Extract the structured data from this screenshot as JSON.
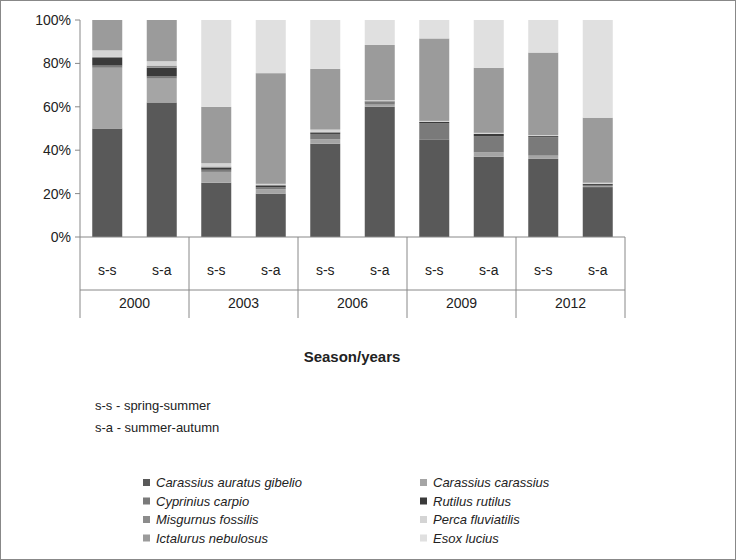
{
  "chart_data": {
    "type": "bar",
    "stacked": true,
    "x_label": "Season/years",
    "notes": [
      "s-s - spring-summer",
      "s-a - summer-autumn"
    ],
    "categories": [
      "s-s",
      "s-a",
      "s-s",
      "s-a",
      "s-s",
      "s-a",
      "s-s",
      "s-a",
      "s-s",
      "s-a"
    ],
    "category_groups": [
      {
        "label": "2000",
        "size": 2
      },
      {
        "label": "2003",
        "size": 2
      },
      {
        "label": "2006",
        "size": 2
      },
      {
        "label": "2009",
        "size": 2
      },
      {
        "label": "2012",
        "size": 2
      }
    ],
    "ylim": [
      0,
      100
    ],
    "yticks": [
      {
        "value": 0,
        "label": "0%"
      },
      {
        "value": 20,
        "label": "20%"
      },
      {
        "value": 40,
        "label": "40%"
      },
      {
        "value": 60,
        "label": "60%"
      },
      {
        "value": 80,
        "label": "80%"
      },
      {
        "value": 100,
        "label": "100%"
      }
    ],
    "grid": false,
    "legend": "bottom",
    "series": [
      {
        "name": "Carassius auratus gibelio",
        "color": "#595959",
        "values": [
          50,
          62,
          25,
          20,
          43,
          60,
          45,
          37,
          36,
          23
        ]
      },
      {
        "name": "Carassius carassius",
        "color": "#a5a5a5",
        "values": [
          28,
          11,
          5,
          2,
          2,
          1,
          0,
          2,
          1.5,
          0.5
        ]
      },
      {
        "name": "Cyprinius carpio",
        "color": "#7a7a7a",
        "values": [
          1,
          1,
          1,
          1,
          2.5,
          1,
          7.5,
          7.5,
          8.5,
          0.5
        ]
      },
      {
        "name": "Rutilus rutilus",
        "color": "#3a3a3a",
        "values": [
          3.5,
          4,
          1,
          0.5,
          0.5,
          0.5,
          0.5,
          1,
          0.5,
          0.5
        ]
      },
      {
        "name": "Misgurnus fossilis",
        "color": "#8c8c8c",
        "values": [
          0.5,
          1,
          0.5,
          0.5,
          0.5,
          0,
          0,
          0,
          0,
          0
        ]
      },
      {
        "name": "Perca fluviatilis",
        "color": "#d4d4d4",
        "values": [
          3,
          2,
          1.5,
          0.5,
          1,
          0.5,
          0.5,
          0.5,
          0.5,
          0.5
        ]
      },
      {
        "name": "Ictalurus nebulosus",
        "color": "#9b9b9b",
        "values": [
          14,
          19,
          26,
          51,
          28,
          25.5,
          38,
          30,
          38,
          30
        ]
      },
      {
        "name": "Esox lucius",
        "color": "#e0e0e0",
        "values": [
          0,
          0,
          40,
          24.5,
          22.5,
          11.5,
          8.5,
          22,
          15,
          45
        ]
      }
    ]
  }
}
